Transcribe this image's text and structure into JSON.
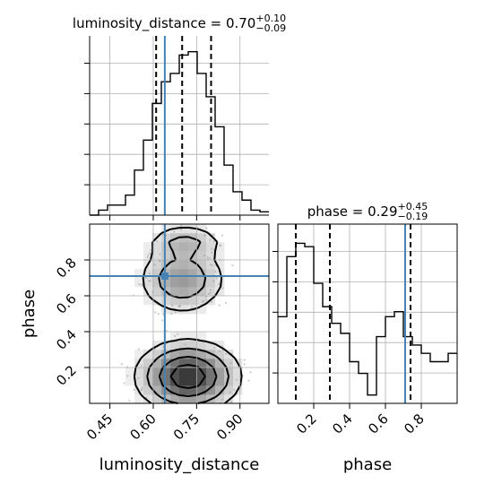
{
  "chart_data": {
    "type": "corner",
    "parameters": [
      "luminosity_distance",
      "phase"
    ],
    "truth": {
      "luminosity_distance": 0.64,
      "phase": 0.71
    },
    "grid": true,
    "panels": [
      {
        "name": "luminosity_distance-marginal",
        "type": "histogram",
        "title": {
          "main": "luminosity_distance = 0.70",
          "upper": "+0.10",
          "lower": "−0.09"
        },
        "xlim": [
          0.38,
          1.0
        ],
        "ymax": 1.0,
        "bin_edges": [
          0.38,
          0.411,
          0.442,
          0.473,
          0.504,
          0.535,
          0.566,
          0.597,
          0.628,
          0.659,
          0.69,
          0.721,
          0.752,
          0.783,
          0.814,
          0.845,
          0.876,
          0.907,
          0.938,
          0.969,
          1.0
        ],
        "counts": [
          0.0,
          0.03,
          0.06,
          0.06,
          0.12,
          0.27,
          0.45,
          0.67,
          0.8,
          0.85,
          0.96,
          0.98,
          0.85,
          0.71,
          0.53,
          0.3,
          0.14,
          0.09,
          0.03,
          0.02
        ],
        "quantiles": [
          0.61,
          0.7,
          0.8
        ],
        "truth": 0.64,
        "xticks": [
          0.45,
          0.6,
          0.75,
          0.9
        ],
        "yticks_count": 5
      },
      {
        "name": "phase-marginal",
        "type": "histogram",
        "title": {
          "main": "phase = 0.29",
          "upper": "+0.45",
          "lower": "−0.19"
        },
        "xlim": [
          0.0,
          1.0
        ],
        "ymax": 1.0,
        "bin_edges": [
          0.0,
          0.05,
          0.1,
          0.15,
          0.2,
          0.25,
          0.3,
          0.35,
          0.4,
          0.45,
          0.5,
          0.55,
          0.6,
          0.65,
          0.7,
          0.75,
          0.8,
          0.85,
          0.9,
          0.95,
          1.0
        ],
        "counts": [
          0.52,
          0.88,
          0.96,
          0.94,
          0.72,
          0.58,
          0.48,
          0.42,
          0.25,
          0.18,
          0.05,
          0.4,
          0.52,
          0.55,
          0.4,
          0.35,
          0.3,
          0.25,
          0.25,
          0.3
        ],
        "quantiles": [
          0.1,
          0.29,
          0.74
        ],
        "truth": 0.71,
        "xticks": [
          0.2,
          0.4,
          0.6,
          0.8
        ],
        "xlabel": "phase",
        "yticks_count": 5
      },
      {
        "name": "joint-2d",
        "type": "contour",
        "x_param": "luminosity_distance",
        "y_param": "phase",
        "xlim": [
          0.38,
          1.0
        ],
        "ylim": [
          0.0,
          1.0
        ],
        "xticks": [
          0.45,
          0.6,
          0.75,
          0.9
        ],
        "yticks": [
          0.2,
          0.4,
          0.6,
          0.8
        ],
        "xlabel": "luminosity_distance",
        "ylabel": "phase",
        "modes": [
          {
            "x": 0.72,
            "y": 0.15,
            "sx": 0.09,
            "sy": 0.1,
            "w": 1.0
          },
          {
            "x": 0.7,
            "y": 0.69,
            "sx": 0.08,
            "sy": 0.1,
            "w": 0.5
          },
          {
            "x": 0.71,
            "y": 0.9,
            "sx": 0.07,
            "sy": 0.05,
            "w": 0.35
          }
        ]
      }
    ]
  }
}
